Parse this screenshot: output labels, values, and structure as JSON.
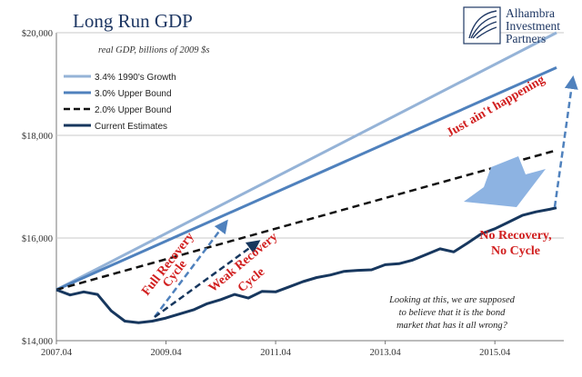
{
  "chart_data": {
    "type": "line",
    "title": "Long Run GDP",
    "subtitle": "real GDP, billions of 2009 $s",
    "ylim": [
      14000,
      20000
    ],
    "y_ticks": [
      14000,
      16000,
      18000,
      20000
    ],
    "y_tick_labels": [
      "$14,000",
      "$16,000",
      "$18,000",
      "$20,000"
    ],
    "x_tick_labels": [
      "2007.04",
      "2009.04",
      "2011.04",
      "2013.04",
      "2015.04"
    ],
    "grid": "horizontal",
    "legend_position": "top-left",
    "series": [
      {
        "name": "3.4% 1990's Growth",
        "color": "#95b3d7",
        "style": "solid",
        "x": [
          0,
          36.5
        ],
        "values": [
          14991,
          20000
        ]
      },
      {
        "name": "3.0% Upper Bound",
        "color": "#4f81bd",
        "style": "solid",
        "x": [
          0,
          36.5
        ],
        "values": [
          14991,
          19320
        ]
      },
      {
        "name": "2.0% Upper Bound",
        "color": "#111111",
        "style": "dashed",
        "x": [
          0,
          36.5
        ],
        "values": [
          14991,
          17710
        ]
      },
      {
        "name": "Current Estimates",
        "color": "#17375e",
        "style": "solid",
        "x": [
          0,
          1,
          2,
          3,
          4,
          5,
          6,
          7,
          8,
          9,
          10,
          11,
          12,
          13,
          14,
          15,
          16,
          17,
          18,
          19,
          20,
          21,
          22,
          23,
          24,
          25,
          26,
          27,
          28,
          29,
          30,
          31,
          32,
          33,
          34,
          35,
          36,
          36.5
        ],
        "values": [
          14991,
          14890,
          14950,
          14900,
          14580,
          14380,
          14350,
          14380,
          14440,
          14520,
          14600,
          14720,
          14800,
          14900,
          14830,
          14960,
          14950,
          15050,
          15150,
          15230,
          15280,
          15350,
          15370,
          15380,
          15480,
          15500,
          15570,
          15680,
          15790,
          15730,
          15900,
          16080,
          16180,
          16310,
          16440,
          16510,
          16560,
          16590
        ]
      }
    ],
    "annotations": {
      "just_aint": "Just ain't happening",
      "full_recovery_line1": "Full Recovery",
      "full_recovery_line2": "Cycle",
      "weak_recovery_line1": "Weak Recovery",
      "weak_recovery_line2": "Cycle",
      "no_recovery_line1": "No Recovery,",
      "no_recovery_line2": "No Cycle",
      "note_line1": "Looking at this, we are supposed",
      "note_line2": "to believe that it is the bond",
      "note_line3": "market that has it all wrong?"
    },
    "colors": {
      "annotation_red": "#d11f1f",
      "arrow_blue": "#4f81bd",
      "big_arrow": "#8db3e2",
      "grid": "#c8c8c8"
    }
  },
  "logo": {
    "line1": "Alhambra",
    "line2": "Investment",
    "line3": "Partners"
  }
}
